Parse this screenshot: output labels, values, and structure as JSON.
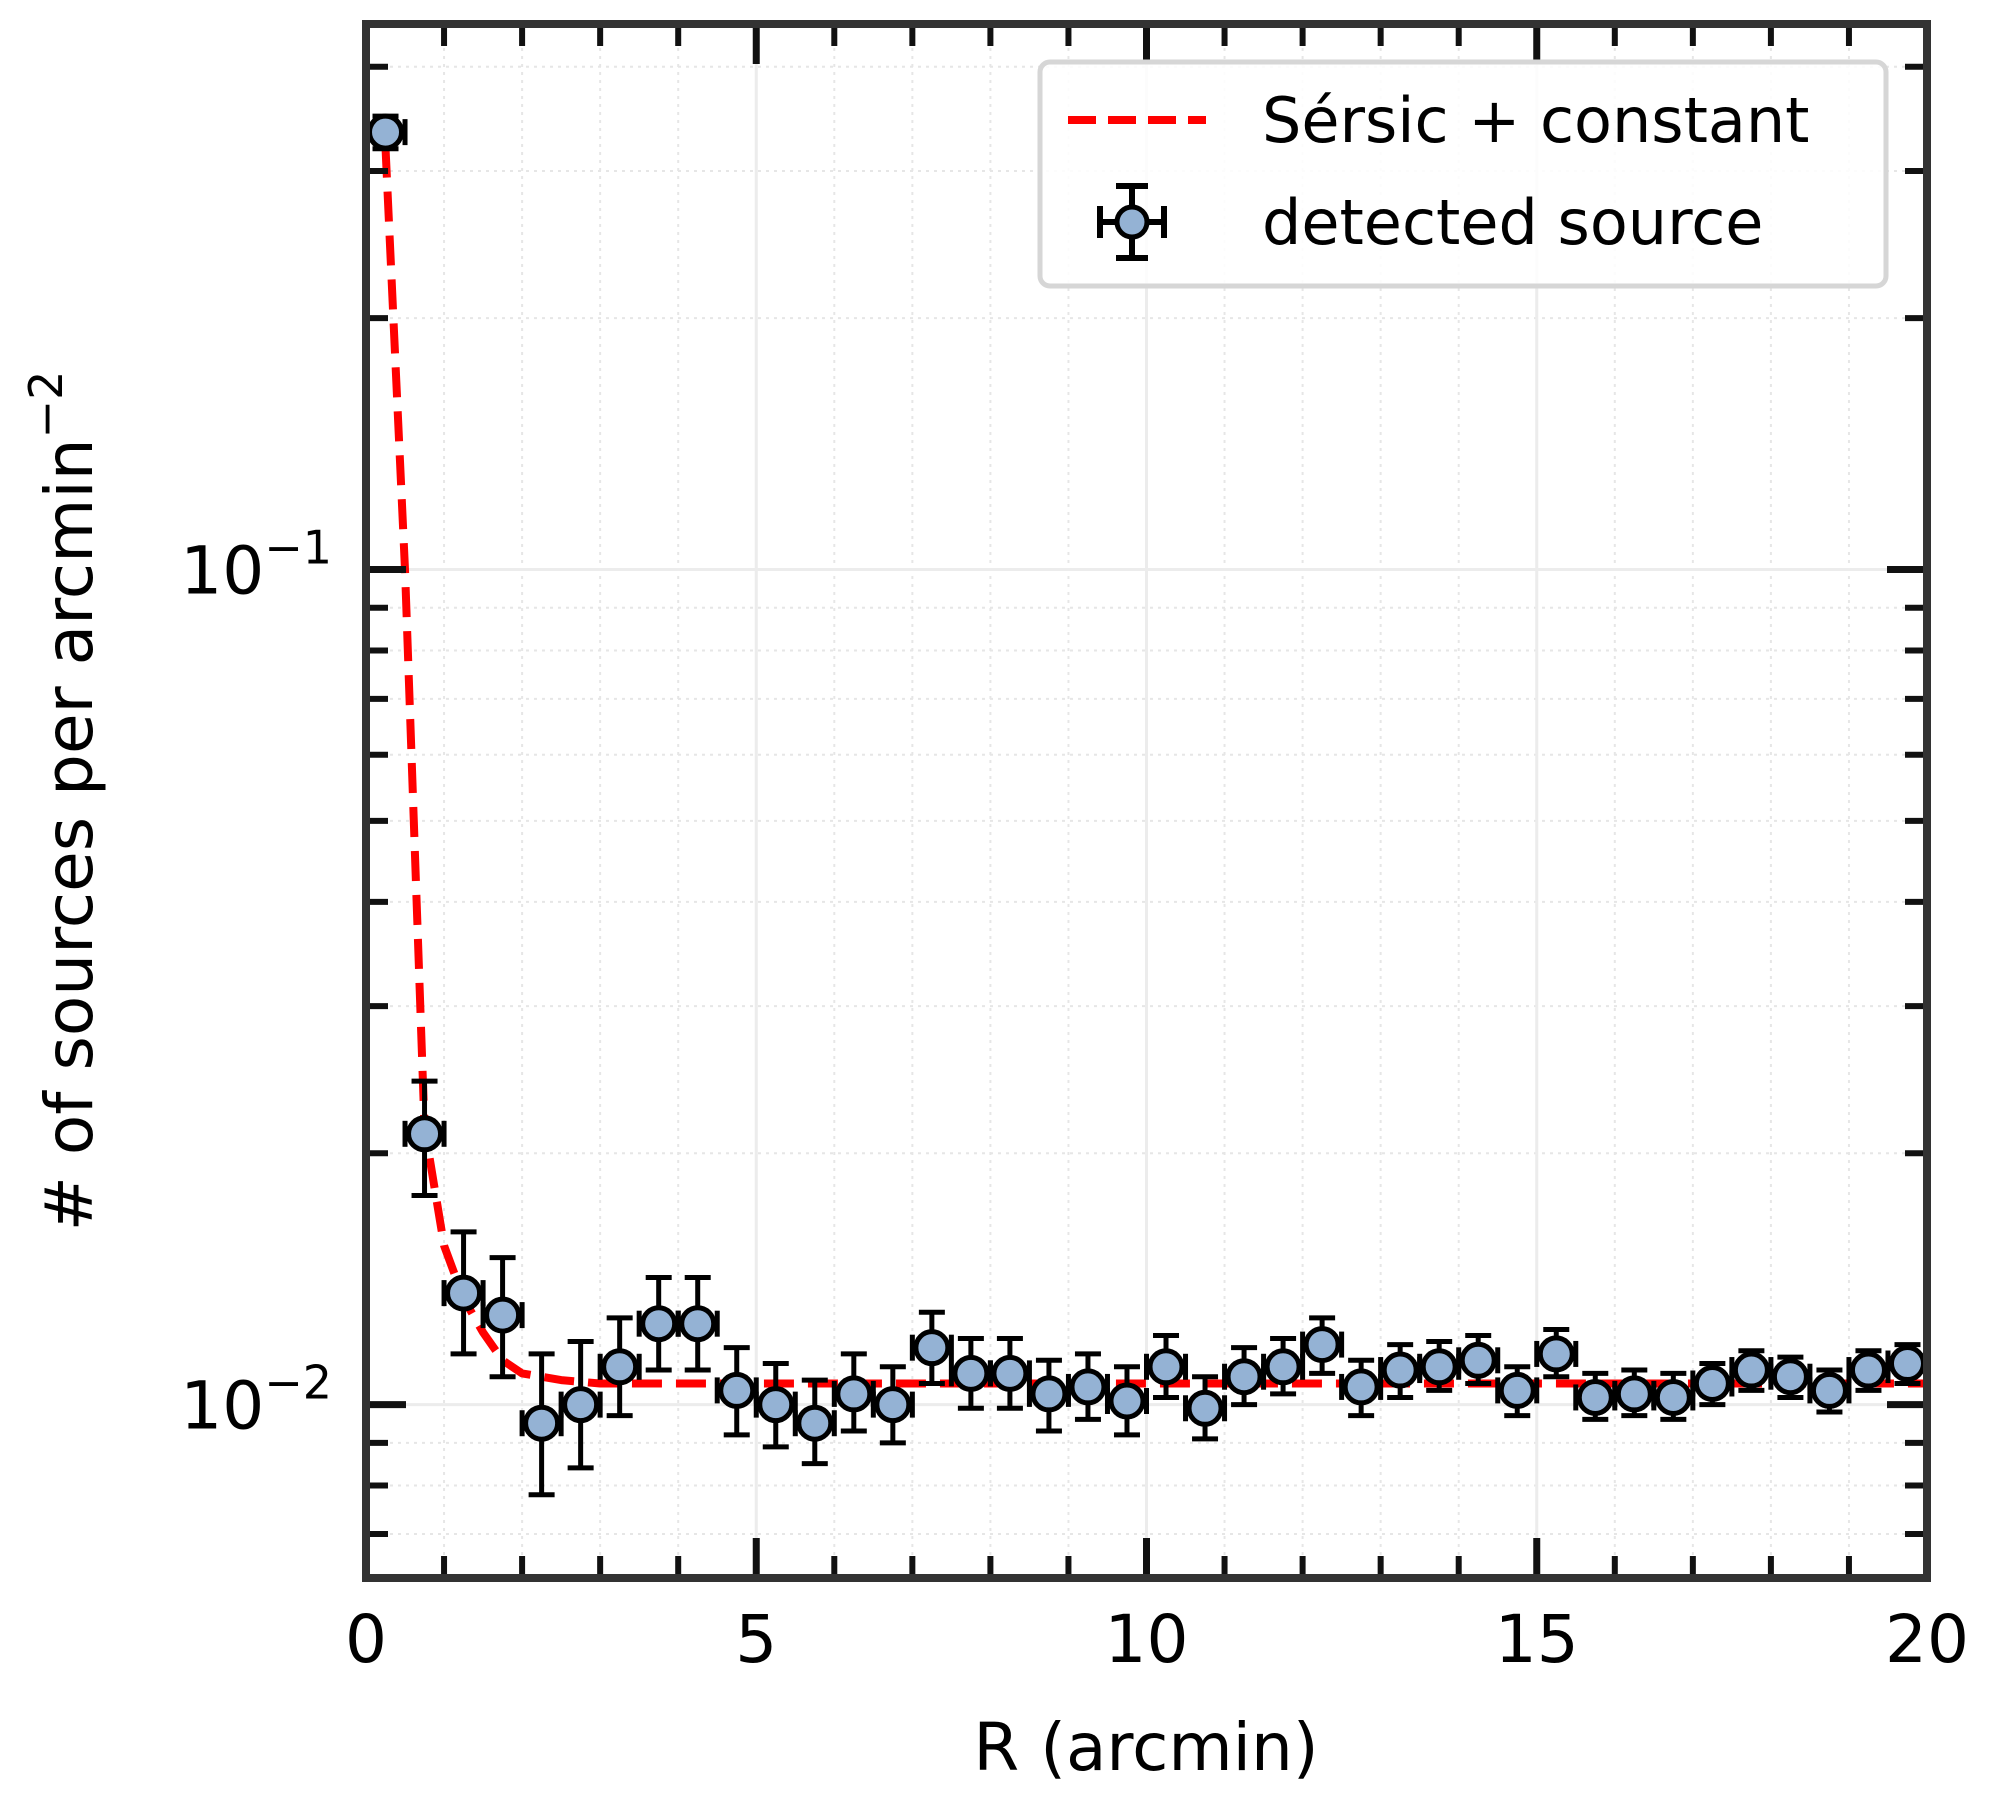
{
  "chart_data": {
    "type": "scatter",
    "xlabel": "R (arcmin)",
    "ylabel_main": "# of sources per arcmin",
    "ylabel_exp": "−2",
    "xlim": [
      0,
      20
    ],
    "ylim": [
      0.0062,
      0.45
    ],
    "yscale": "log",
    "grid": true,
    "legend_position": "top-right",
    "x_ticks": [
      {
        "value": 0,
        "label": "0"
      },
      {
        "value": 5,
        "label": "5"
      },
      {
        "value": 10,
        "label": "10"
      },
      {
        "value": 15,
        "label": "15"
      },
      {
        "value": 20,
        "label": "20"
      }
    ],
    "y_ticks": [
      {
        "value": 0.1,
        "base": "10",
        "exp": "−1"
      },
      {
        "value": 0.01,
        "base": "10",
        "exp": "−2"
      }
    ],
    "series": [
      {
        "name": "detected source",
        "kind": "errorbar",
        "color": "#94b2d4",
        "edge_color": "#000000",
        "x_err": 0.25,
        "points": [
          {
            "x": 0.25,
            "y": 0.334,
            "lo": 0.319,
            "hi": 0.349
          },
          {
            "x": 0.75,
            "y": 0.0211,
            "lo": 0.0178,
            "hi": 0.0244
          },
          {
            "x": 1.25,
            "y": 0.0136,
            "lo": 0.0115,
            "hi": 0.0161
          },
          {
            "x": 1.75,
            "y": 0.0128,
            "lo": 0.0108,
            "hi": 0.015
          },
          {
            "x": 2.25,
            "y": 0.0095,
            "lo": 0.0078,
            "hi": 0.0115
          },
          {
            "x": 2.75,
            "y": 0.01,
            "lo": 0.0084,
            "hi": 0.0119
          },
          {
            "x": 3.25,
            "y": 0.0111,
            "lo": 0.0097,
            "hi": 0.0127
          },
          {
            "x": 3.75,
            "y": 0.0125,
            "lo": 0.011,
            "hi": 0.0142
          },
          {
            "x": 4.25,
            "y": 0.0125,
            "lo": 0.011,
            "hi": 0.0142
          },
          {
            "x": 4.75,
            "y": 0.0104,
            "lo": 0.0092,
            "hi": 0.0117
          },
          {
            "x": 5.25,
            "y": 0.01,
            "lo": 0.0089,
            "hi": 0.0112
          },
          {
            "x": 5.75,
            "y": 0.0095,
            "lo": 0.0085,
            "hi": 0.0107
          },
          {
            "x": 6.25,
            "y": 0.0103,
            "lo": 0.0093,
            "hi": 0.0115
          },
          {
            "x": 6.75,
            "y": 0.01,
            "lo": 0.009,
            "hi": 0.0111
          },
          {
            "x": 7.25,
            "y": 0.0117,
            "lo": 0.0106,
            "hi": 0.0129
          },
          {
            "x": 7.75,
            "y": 0.0109,
            "lo": 0.0099,
            "hi": 0.012
          },
          {
            "x": 8.25,
            "y": 0.0109,
            "lo": 0.0099,
            "hi": 0.012
          },
          {
            "x": 8.75,
            "y": 0.0103,
            "lo": 0.0093,
            "hi": 0.0113
          },
          {
            "x": 9.25,
            "y": 0.0105,
            "lo": 0.0096,
            "hi": 0.0115
          },
          {
            "x": 9.75,
            "y": 0.0101,
            "lo": 0.0092,
            "hi": 0.0111
          },
          {
            "x": 10.25,
            "y": 0.0111,
            "lo": 0.0102,
            "hi": 0.0121
          },
          {
            "x": 10.75,
            "y": 0.0099,
            "lo": 0.0091,
            "hi": 0.0108
          },
          {
            "x": 11.25,
            "y": 0.0108,
            "lo": 0.01,
            "hi": 0.0117
          },
          {
            "x": 11.75,
            "y": 0.0111,
            "lo": 0.0103,
            "hi": 0.012
          },
          {
            "x": 12.25,
            "y": 0.0118,
            "lo": 0.0109,
            "hi": 0.0127
          },
          {
            "x": 12.75,
            "y": 0.0105,
            "lo": 0.0097,
            "hi": 0.0113
          },
          {
            "x": 13.25,
            "y": 0.011,
            "lo": 0.0102,
            "hi": 0.0118
          },
          {
            "x": 13.75,
            "y": 0.0111,
            "lo": 0.0104,
            "hi": 0.0119
          },
          {
            "x": 14.25,
            "y": 0.0113,
            "lo": 0.0106,
            "hi": 0.0121
          },
          {
            "x": 14.75,
            "y": 0.0104,
            "lo": 0.0097,
            "hi": 0.0111
          },
          {
            "x": 15.25,
            "y": 0.0115,
            "lo": 0.0108,
            "hi": 0.0123
          },
          {
            "x": 15.75,
            "y": 0.0102,
            "lo": 0.0096,
            "hi": 0.0109
          },
          {
            "x": 16.25,
            "y": 0.0103,
            "lo": 0.0097,
            "hi": 0.011
          },
          {
            "x": 16.75,
            "y": 0.0102,
            "lo": 0.0096,
            "hi": 0.0109
          },
          {
            "x": 17.25,
            "y": 0.0106,
            "lo": 0.01,
            "hi": 0.0112
          },
          {
            "x": 17.75,
            "y": 0.011,
            "lo": 0.0104,
            "hi": 0.0116
          },
          {
            "x": 18.25,
            "y": 0.0108,
            "lo": 0.0102,
            "hi": 0.0114
          },
          {
            "x": 18.75,
            "y": 0.0104,
            "lo": 0.0098,
            "hi": 0.011
          },
          {
            "x": 19.25,
            "y": 0.011,
            "lo": 0.0104,
            "hi": 0.0116
          },
          {
            "x": 19.75,
            "y": 0.0112,
            "lo": 0.0106,
            "hi": 0.0118
          }
        ]
      },
      {
        "name": "Sérsic + constant",
        "kind": "line",
        "style": "dashed",
        "color": "#ff0000",
        "x": [
          0.25,
          0.5,
          0.75,
          1.0,
          1.25,
          1.5,
          1.75,
          2.0,
          2.5,
          3.0,
          4.0,
          5.0,
          6.0,
          8.0,
          10.0,
          12.0,
          14.0,
          16.0,
          18.0,
          20.0
        ],
        "y": [
          0.32,
          0.1,
          0.0215,
          0.0155,
          0.0134,
          0.0122,
          0.0113,
          0.0109,
          0.0107,
          0.0106,
          0.0106,
          0.0106,
          0.0106,
          0.0106,
          0.0106,
          0.0106,
          0.0106,
          0.0106,
          0.0106,
          0.0106
        ]
      }
    ]
  }
}
